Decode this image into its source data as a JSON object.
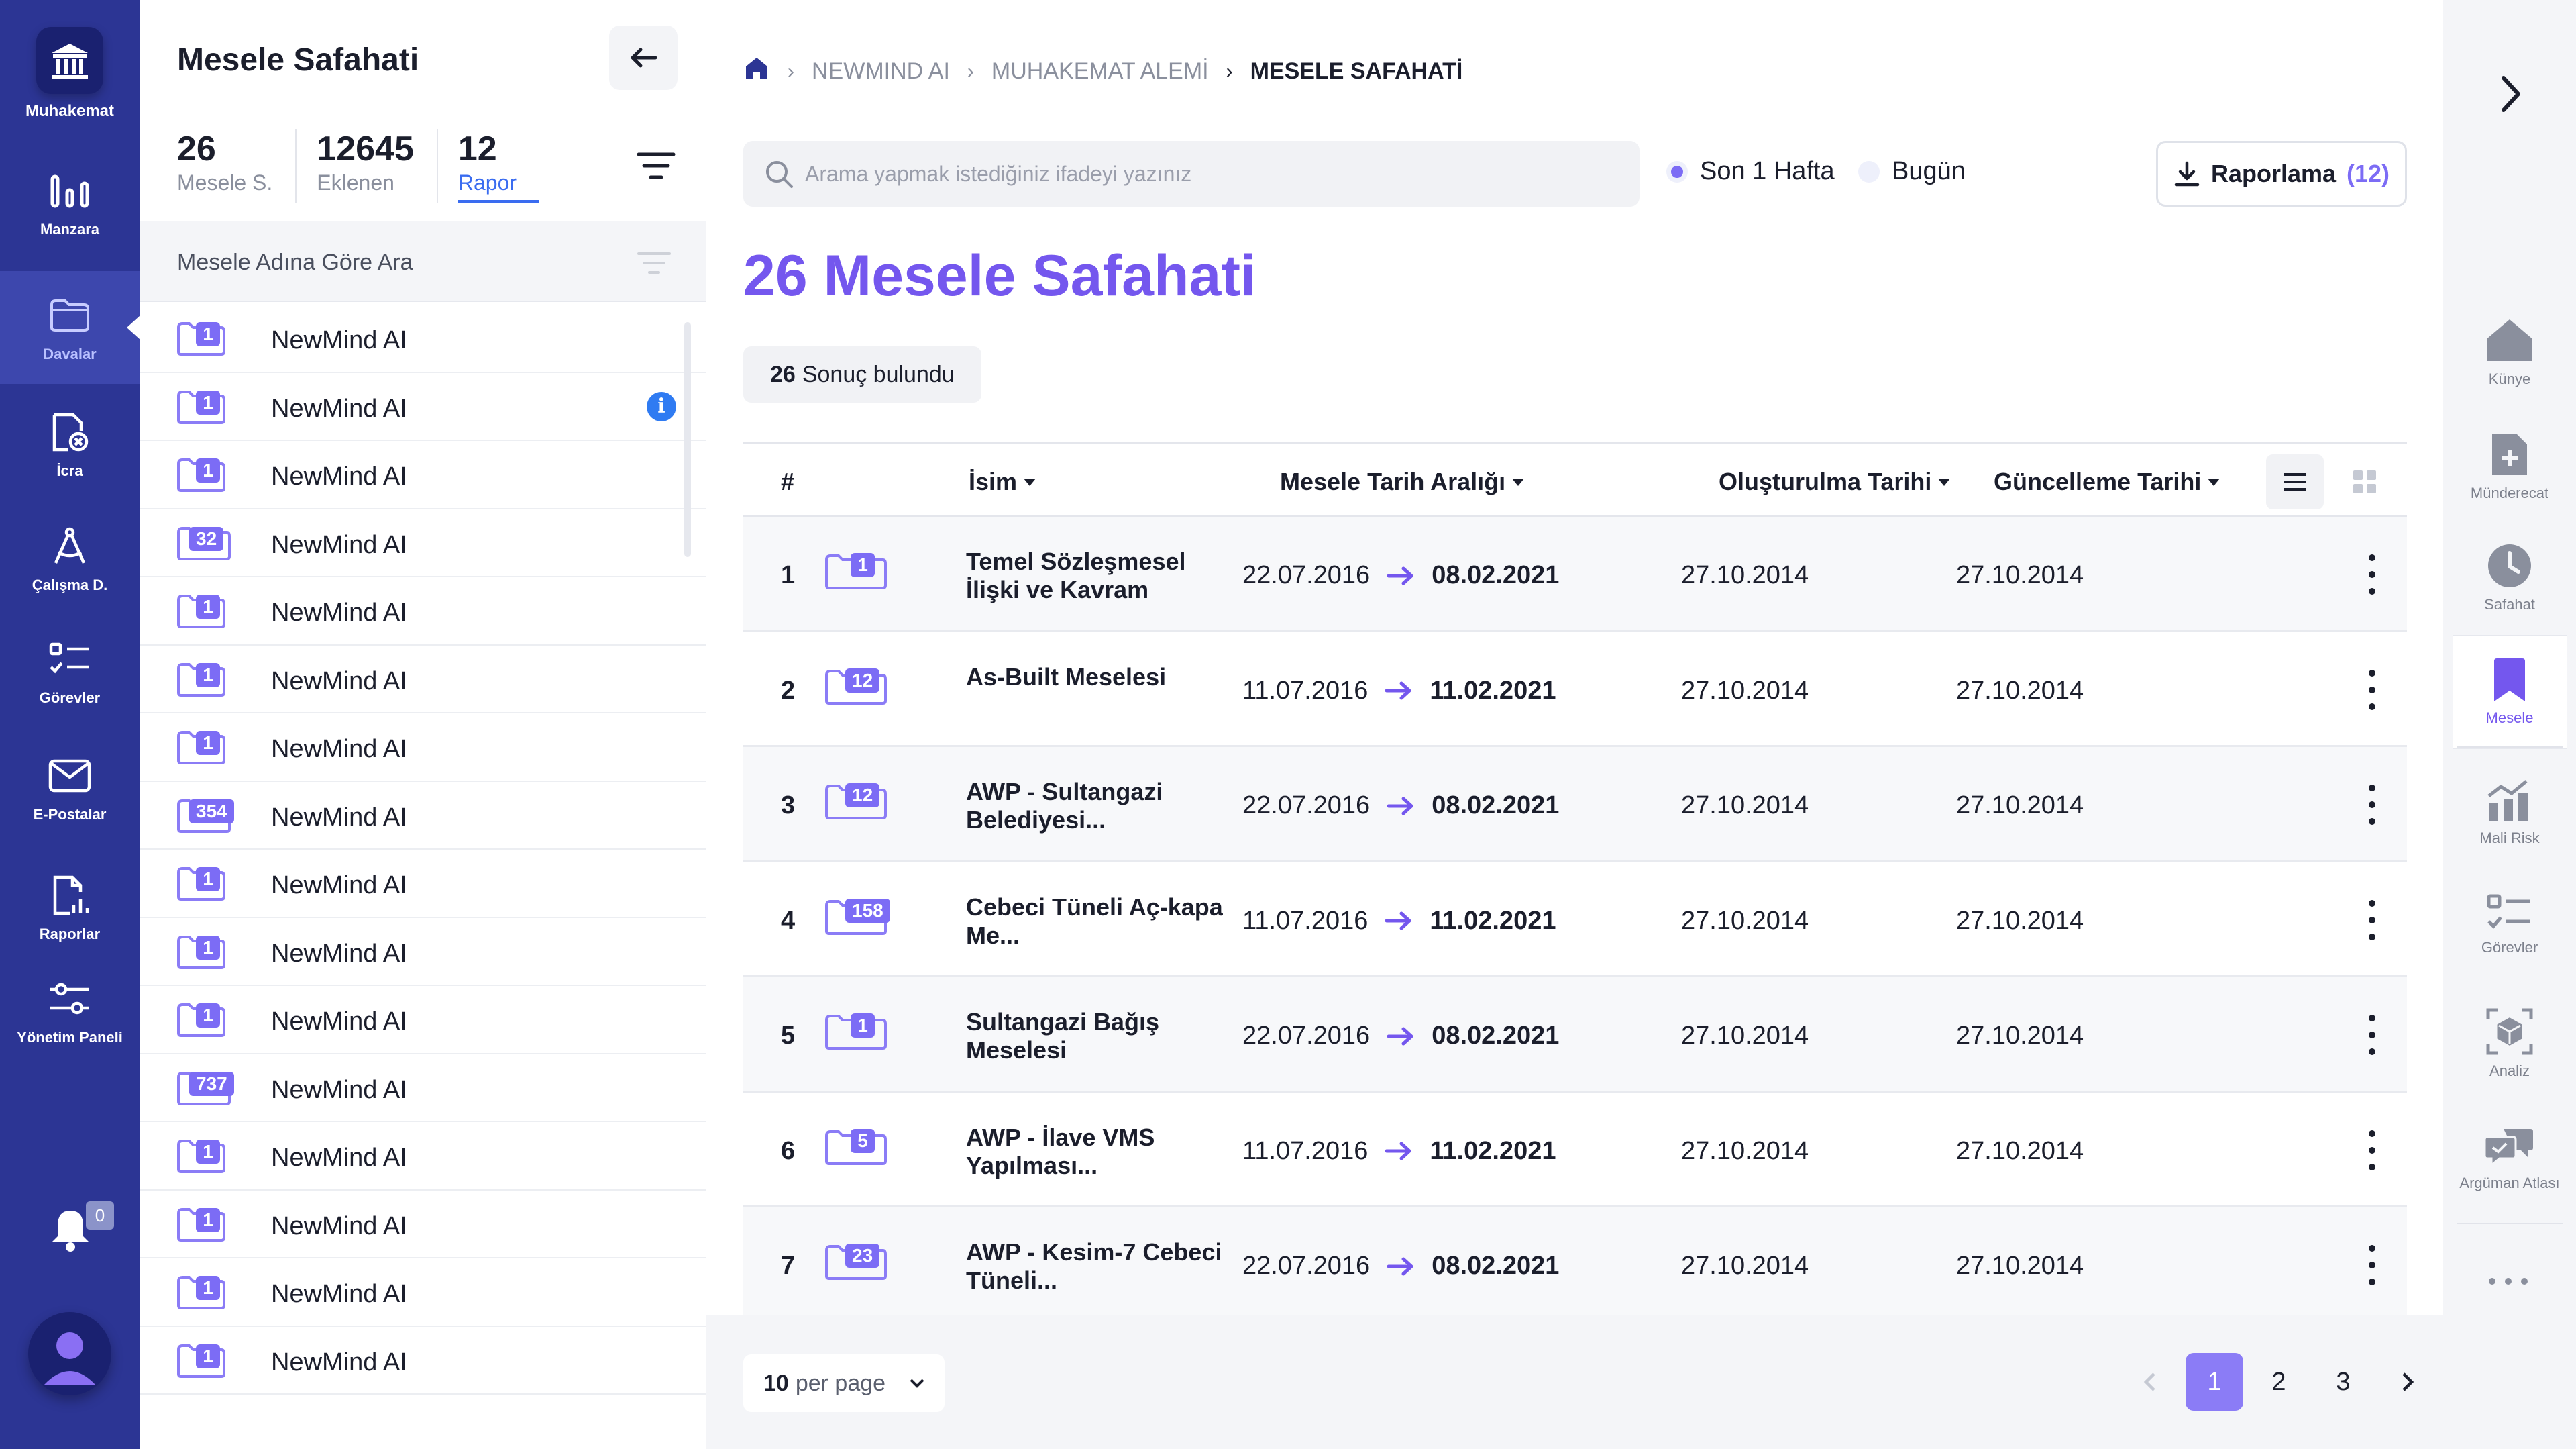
{
  "app": {
    "name": "Muhakemat"
  },
  "nav": [
    {
      "label": "Manzara",
      "icon": "bar-chart-icon"
    },
    {
      "label": "Davalar",
      "icon": "folder-icon",
      "active": true
    },
    {
      "label": "İcra",
      "icon": "file-cancel-icon"
    },
    {
      "label": "Çalışma D.",
      "icon": "compass-icon"
    },
    {
      "label": "Görevler",
      "icon": "checklist-icon"
    },
    {
      "label": "E-Postalar",
      "icon": "mail-icon"
    },
    {
      "label": "Raporlar",
      "icon": "report-icon"
    },
    {
      "label": "Yönetim Paneli",
      "icon": "sliders-icon"
    }
  ],
  "notifications": {
    "count": "0"
  },
  "sidebar": {
    "title": "Mesele Safahati",
    "stats": [
      {
        "value": "26",
        "label": "Mesele S."
      },
      {
        "value": "12645",
        "label": "Eklenen"
      },
      {
        "value": "12",
        "label": "Rapor"
      }
    ],
    "search_label": "Mesele Adına Göre Ara",
    "items": [
      {
        "badge": "1",
        "name": "NewMind AI"
      },
      {
        "badge": "1",
        "name": "NewMind AI",
        "info": "i"
      },
      {
        "badge": "1",
        "name": "NewMind AI"
      },
      {
        "badge": "32",
        "name": "NewMind AI"
      },
      {
        "badge": "1",
        "name": "NewMind AI"
      },
      {
        "badge": "1",
        "name": "NewMind AI"
      },
      {
        "badge": "1",
        "name": "NewMind AI"
      },
      {
        "badge": "354",
        "name": "NewMind AI"
      },
      {
        "badge": "1",
        "name": "NewMind AI"
      },
      {
        "badge": "1",
        "name": "NewMind AI"
      },
      {
        "badge": "1",
        "name": "NewMind AI"
      },
      {
        "badge": "737",
        "name": "NewMind AI"
      },
      {
        "badge": "1",
        "name": "NewMind AI"
      },
      {
        "badge": "1",
        "name": "NewMind AI"
      },
      {
        "badge": "1",
        "name": "NewMind AI"
      },
      {
        "badge": "1",
        "name": "NewMind AI"
      }
    ]
  },
  "breadcrumb": [
    "NEWMIND AI",
    "MUHAKEMAT ALEMİ",
    "MESELE SAFAHATİ"
  ],
  "search": {
    "placeholder": "Arama yapmak istediğiniz ifadeyi yazınız"
  },
  "filters": {
    "option1": "Son 1 Hafta",
    "option2": "Bugün",
    "selected": "Son 1 Hafta"
  },
  "report_button": {
    "label": "Raporlama",
    "count": "(12)"
  },
  "page_title": "26 Mesele Safahati",
  "results": {
    "count": "26",
    "label": "Sonuç bulundu"
  },
  "table": {
    "headers": {
      "index": "#",
      "name": "İsim",
      "range": "Mesele Tarih Aralığı",
      "created": "Oluşturulma Tarihi",
      "updated": "Güncelleme Tarihi"
    },
    "rows": [
      {
        "index": "1",
        "badge": "1",
        "name": "Temel Sözleşmesel İlişki ve Kavram",
        "start": "22.07.2016",
        "end": "08.02.2021",
        "created": "27.10.2014",
        "updated": "27.10.2014"
      },
      {
        "index": "2",
        "badge": "12",
        "name": "As-Built Meselesi",
        "start": "11.07.2016",
        "end": "11.02.2021",
        "created": "27.10.2014",
        "updated": "27.10.2014"
      },
      {
        "index": "3",
        "badge": "12",
        "name": "AWP - Sultangazi Belediyesi...",
        "start": "22.07.2016",
        "end": "08.02.2021",
        "created": "27.10.2014",
        "updated": "27.10.2014"
      },
      {
        "index": "4",
        "badge": "158",
        "name": "Cebeci Tüneli Aç-kapa Me...",
        "start": "11.07.2016",
        "end": "11.02.2021",
        "created": "27.10.2014",
        "updated": "27.10.2014"
      },
      {
        "index": "5",
        "badge": "1",
        "name": "Sultangazi Bağış Meselesi",
        "start": "22.07.2016",
        "end": "08.02.2021",
        "created": "27.10.2014",
        "updated": "27.10.2014"
      },
      {
        "index": "6",
        "badge": "5",
        "name": "AWP - İlave VMS Yapılması...",
        "start": "11.07.2016",
        "end": "11.02.2021",
        "created": "27.10.2014",
        "updated": "27.10.2014"
      },
      {
        "index": "7",
        "badge": "23",
        "name": "AWP - Kesim-7 Cebeci Tüneli...",
        "start": "22.07.2016",
        "end": "08.02.2021",
        "created": "27.10.2014",
        "updated": "27.10.2014"
      }
    ]
  },
  "pagination": {
    "per_page_value": "10",
    "per_page_label": "per page",
    "pages": [
      "1",
      "2",
      "3"
    ],
    "current": "1"
  },
  "right_rail": [
    {
      "label": "Künye",
      "icon": "home-icon"
    },
    {
      "label": "Münderecat",
      "icon": "file-add-icon"
    },
    {
      "label": "Safahat",
      "icon": "clock-icon"
    },
    {
      "label": "Mesele",
      "icon": "bookmark-icon",
      "active": true
    },
    {
      "label": "Mali Risk",
      "icon": "chart-risk-icon"
    },
    {
      "label": "Görevler",
      "icon": "checklist-icon"
    },
    {
      "label": "Analiz",
      "icon": "cube-scan-icon"
    },
    {
      "label": "Argüman Atlası",
      "icon": "chat-bubbles-icon"
    }
  ],
  "colors": {
    "rail": "#2c3594",
    "accent": "#7457ee",
    "badge": "#7c6cf5",
    "info": "#2f7bf2"
  }
}
